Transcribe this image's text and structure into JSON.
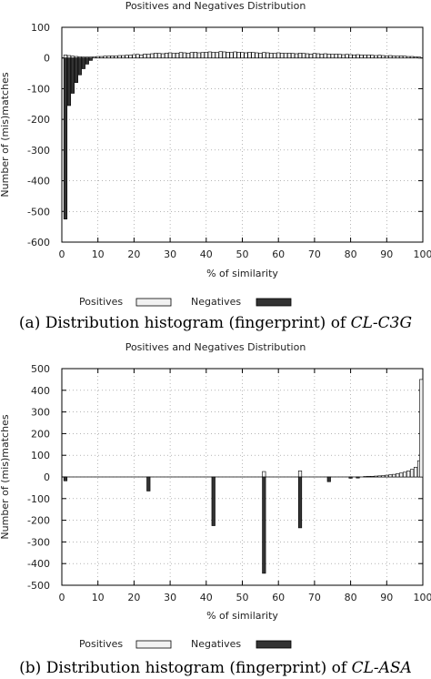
{
  "chart_data": [
    {
      "type": "bar",
      "title": "Positives and Negatives Distribution",
      "xlabel": "% of similarity",
      "ylabel": "Number of (mis)matches",
      "xlim": [
        0,
        100
      ],
      "ylim": [
        -600,
        100
      ],
      "xticks": [
        0,
        10,
        20,
        30,
        40,
        50,
        60,
        70,
        80,
        90,
        100
      ],
      "yticks": [
        100,
        0,
        -100,
        -200,
        -300,
        -400,
        -500,
        -600
      ],
      "grid": true,
      "legend_position": "bottom",
      "series": [
        {
          "name": "Positives",
          "color": "#f2f2f2",
          "x": [
            1,
            2,
            3,
            4,
            5,
            6,
            7,
            8,
            9,
            10,
            11,
            12,
            13,
            14,
            15,
            16,
            17,
            18,
            19,
            20,
            21,
            22,
            23,
            24,
            25,
            26,
            27,
            28,
            29,
            30,
            31,
            32,
            33,
            34,
            35,
            36,
            37,
            38,
            39,
            40,
            41,
            42,
            43,
            44,
            45,
            46,
            47,
            48,
            49,
            50,
            51,
            52,
            53,
            54,
            55,
            56,
            57,
            58,
            59,
            60,
            61,
            62,
            63,
            64,
            65,
            66,
            67,
            68,
            69,
            70,
            71,
            72,
            73,
            74,
            75,
            76,
            77,
            78,
            79,
            80,
            81,
            82,
            83,
            84,
            85,
            86,
            87,
            88,
            89,
            90,
            91,
            92,
            93,
            94,
            95,
            96,
            97,
            98,
            99
          ],
          "values": [
            10,
            8,
            6,
            5,
            4,
            3,
            3,
            3,
            4,
            5,
            5,
            6,
            6,
            7,
            6,
            8,
            8,
            9,
            9,
            11,
            12,
            10,
            13,
            12,
            14,
            16,
            15,
            14,
            16,
            17,
            15,
            16,
            18,
            17,
            16,
            18,
            19,
            17,
            18,
            19,
            20,
            19,
            18,
            21,
            20,
            19,
            18,
            20,
            19,
            18,
            17,
            19,
            18,
            17,
            16,
            18,
            17,
            16,
            15,
            17,
            16,
            15,
            16,
            15,
            14,
            16,
            15,
            14,
            13,
            15,
            14,
            13,
            14,
            13,
            12,
            13,
            12,
            11,
            12,
            11,
            10,
            11,
            10,
            9,
            10,
            9,
            8,
            9,
            8,
            7,
            8,
            7,
            6,
            7,
            6,
            5,
            5,
            4,
            3
          ]
        },
        {
          "name": "Negatives",
          "color": "#333333",
          "x": [
            1,
            2,
            3,
            4,
            5,
            6,
            7,
            8
          ],
          "values": [
            -525,
            -155,
            -115,
            -80,
            -55,
            -35,
            -20,
            -8
          ]
        }
      ]
    },
    {
      "type": "bar",
      "title": "Positives and Negatives Distribution",
      "xlabel": "% of similarity",
      "ylabel": "Number of (mis)matches",
      "xlim": [
        0,
        100
      ],
      "ylim": [
        -500,
        500
      ],
      "xticks": [
        0,
        10,
        20,
        30,
        40,
        50,
        60,
        70,
        80,
        90,
        100
      ],
      "yticks": [
        500,
        400,
        300,
        200,
        100,
        0,
        -100,
        -200,
        -300,
        -400,
        -500
      ],
      "grid": true,
      "legend_position": "bottom",
      "series": [
        {
          "name": "Positives",
          "color": "#f2f2f2",
          "x": [
            56,
            66,
            84,
            85,
            86,
            87,
            88,
            89,
            90,
            91,
            92,
            93,
            94,
            95,
            96,
            97,
            98,
            99,
            100
          ],
          "values": [
            25,
            28,
            2,
            3,
            3,
            4,
            5,
            6,
            8,
            10,
            12,
            15,
            18,
            22,
            28,
            35,
            45,
            75,
            450
          ]
        },
        {
          "name": "Negatives",
          "color": "#333333",
          "x": [
            1,
            24,
            42,
            56,
            66,
            74,
            80,
            82
          ],
          "values": [
            -18,
            -65,
            -225,
            -445,
            -235,
            -22,
            -6,
            -5
          ]
        }
      ]
    }
  ],
  "captions": [
    {
      "label": "(a) Distribution histogram (fingerprint) of ",
      "emph": "CL-C3G"
    },
    {
      "label": "(b) Distribution histogram (fingerprint) of ",
      "emph": "CL-ASA"
    }
  ]
}
